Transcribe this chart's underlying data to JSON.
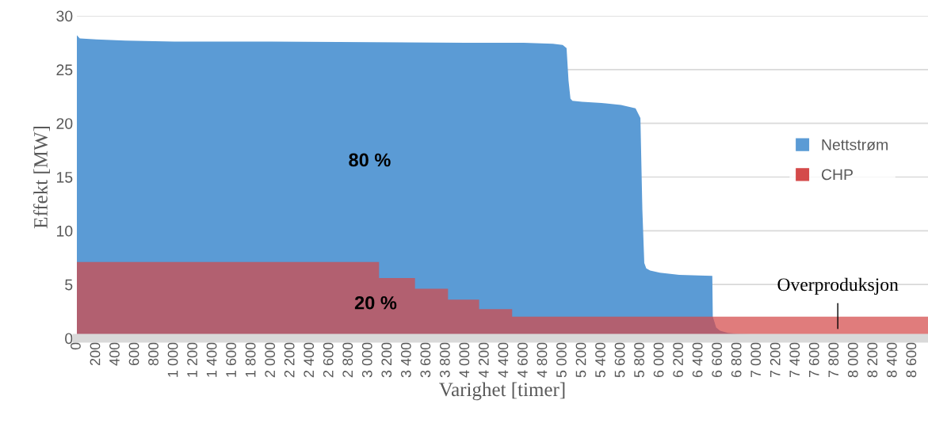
{
  "chart_data": {
    "type": "area",
    "xlabel": "Varighet [timer]",
    "ylabel": "Effekt [MW]",
    "xlim": [
      0,
      8760
    ],
    "ylim": [
      0,
      30
    ],
    "yticks": [
      0,
      5,
      10,
      15,
      20,
      25,
      30
    ],
    "xticks": [
      0,
      200,
      400,
      600,
      800,
      {
        "value": 1000,
        "label": "1 000"
      },
      {
        "value": 1200,
        "label": "1 200"
      },
      {
        "value": 1400,
        "label": "1 400"
      },
      {
        "value": 1600,
        "label": "1 600"
      },
      {
        "value": 1800,
        "label": "1 800"
      },
      {
        "value": 2000,
        "label": "2 000"
      },
      {
        "value": 2200,
        "label": "2 200"
      },
      {
        "value": 2400,
        "label": "2 400"
      },
      {
        "value": 2600,
        "label": "2 600"
      },
      {
        "value": 2800,
        "label": "2 800"
      },
      {
        "value": 3000,
        "label": "3 000"
      },
      {
        "value": 3200,
        "label": "3 200"
      },
      {
        "value": 3400,
        "label": "3 400"
      },
      {
        "value": 3600,
        "label": "3 600"
      },
      {
        "value": 3800,
        "label": "3 800"
      },
      {
        "value": 4000,
        "label": "4 000"
      },
      {
        "value": 4200,
        "label": "4 200"
      },
      {
        "value": 4400,
        "label": "4 400"
      },
      {
        "value": 4600,
        "label": "4 600"
      },
      {
        "value": 4800,
        "label": "4 800"
      },
      {
        "value": 5000,
        "label": "5 000"
      },
      {
        "value": 5200,
        "label": "5 200"
      },
      {
        "value": 5400,
        "label": "5 400"
      },
      {
        "value": 5600,
        "label": "5 600"
      },
      {
        "value": 5800,
        "label": "5 800"
      },
      {
        "value": 6000,
        "label": "6 000"
      },
      {
        "value": 6200,
        "label": "6 200"
      },
      {
        "value": 6400,
        "label": "6 400"
      },
      {
        "value": 6600,
        "label": "6 600"
      },
      {
        "value": 6800,
        "label": "6 800"
      },
      {
        "value": 7000,
        "label": "7 000"
      },
      {
        "value": 7200,
        "label": "7 200"
      },
      {
        "value": 7400,
        "label": "7 400"
      },
      {
        "value": 7600,
        "label": "7 600"
      },
      {
        "value": 7800,
        "label": "7 800"
      },
      {
        "value": 8000,
        "label": "8 000"
      },
      {
        "value": 8200,
        "label": "8 200"
      },
      {
        "value": 8400,
        "label": "8 400"
      },
      {
        "value": 8600,
        "label": "8 600"
      }
    ],
    "grid": "y",
    "legend": "right",
    "series": [
      {
        "name": "Nettstrøm",
        "color": "#5b9bd5",
        "x": [
          0,
          30,
          200,
          500,
          1000,
          2000,
          4000,
          4600,
          4900,
          5000,
          5040,
          5060,
          5080,
          5100,
          5200,
          5400,
          5600,
          5750,
          5800,
          5820,
          5840,
          5860,
          5900,
          6000,
          6200,
          6400,
          6540,
          6545,
          6580,
          6620,
          6700,
          6800,
          7000,
          7500,
          8000,
          8760
        ],
        "values": [
          28.2,
          27.9,
          27.8,
          27.7,
          27.6,
          27.6,
          27.5,
          27.5,
          27.4,
          27.3,
          27.0,
          24.0,
          22.3,
          22.1,
          22.0,
          21.9,
          21.7,
          21.4,
          20.5,
          12.0,
          7.0,
          6.5,
          6.3,
          6.1,
          5.9,
          5.85,
          5.8,
          2.0,
          1.0,
          0.7,
          0.5,
          0.4,
          0.35,
          0.3,
          0.3,
          0.25
        ]
      },
      {
        "name": "CHP",
        "color": "#d44a4a",
        "x": [
          0,
          3110,
          3110,
          3480,
          3480,
          3820,
          3820,
          4140,
          4140,
          4480,
          4480,
          8760
        ],
        "values": [
          7.1,
          7.1,
          5.6,
          5.6,
          4.6,
          4.6,
          3.6,
          3.6,
          2.7,
          2.7,
          2.0,
          2.0
        ]
      }
    ],
    "annotations": [
      "80 %",
      "20 %",
      "Overproduksjon"
    ]
  }
}
